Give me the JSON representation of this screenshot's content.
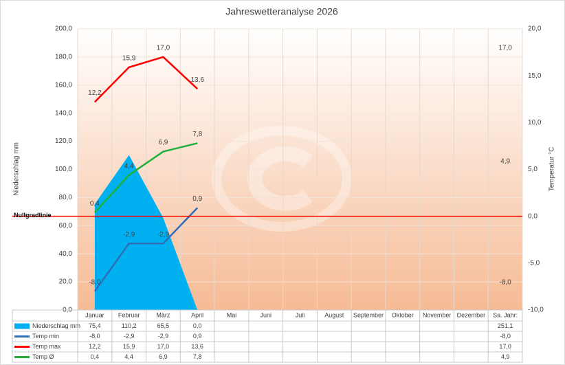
{
  "chart_data": {
    "type": "combo",
    "title": "Jahreswetteranalyse 2026",
    "ylabel": "Niederschlag mm",
    "y2label": "Temperatur °C",
    "categories": [
      "Januar",
      "Februar",
      "März",
      "April",
      "Mai",
      "Juni",
      "Juli",
      "August",
      "September",
      "Oktober",
      "November",
      "Dezember",
      "Sa. Jahr:"
    ],
    "ylim": [
      0,
      200
    ],
    "yticks": [
      {
        "value": 0,
        "label": "0,0"
      },
      {
        "value": 20,
        "label": "20,0"
      },
      {
        "value": 40,
        "label": "40,0"
      },
      {
        "value": 60,
        "label": "60,0"
      },
      {
        "value": 80,
        "label": "80,0"
      },
      {
        "value": 100,
        "label": "100,0"
      },
      {
        "value": 120,
        "label": "120,0"
      },
      {
        "value": 140,
        "label": "140,0"
      },
      {
        "value": 160,
        "label": "160,0"
      },
      {
        "value": 180,
        "label": "180,0"
      },
      {
        "value": 200,
        "label": "200,0"
      }
    ],
    "y2lim": [
      -10,
      20
    ],
    "y2ticks": [
      {
        "value": -10,
        "label": "-10,0"
      },
      {
        "value": -5,
        "label": "-5,0"
      },
      {
        "value": 0,
        "label": "0,0"
      },
      {
        "value": 5,
        "label": "5,0"
      },
      {
        "value": 10,
        "label": "10,0"
      },
      {
        "value": 15,
        "label": "15,0"
      },
      {
        "value": 20,
        "label": "20,0"
      }
    ],
    "grid": true,
    "zero_line": {
      "label": "Nullgradlinie",
      "value": 0,
      "axis": "y2",
      "color": "#ff0000"
    },
    "series": [
      {
        "name": "Niederschlag mm",
        "type": "area",
        "color": "#00b0f0",
        "values": [
          75.4,
          110.2,
          65.5,
          0.0,
          null,
          null,
          null,
          null,
          null,
          null,
          null,
          null,
          251.1
        ],
        "value_labels": [
          "75,4",
          "110,2",
          "65,5",
          "0,0",
          null,
          null,
          null,
          null,
          null,
          null,
          null,
          null,
          "251,1"
        ]
      },
      {
        "name": "Temp min",
        "type": "line",
        "axis": "y2",
        "color": "#2e6db8",
        "values": [
          -8.0,
          -2.9,
          -2.9,
          0.9,
          null,
          null,
          null,
          null,
          null,
          null,
          null,
          null,
          -8.0
        ],
        "value_labels": [
          "-8,0",
          "-2,9",
          "-2,9",
          "0,9",
          null,
          null,
          null,
          null,
          null,
          null,
          null,
          null,
          "-8,0"
        ]
      },
      {
        "name": "Temp max",
        "type": "line",
        "axis": "y2",
        "color": "#ff0000",
        "values": [
          12.2,
          15.9,
          17.0,
          13.6,
          null,
          null,
          null,
          null,
          null,
          null,
          null,
          null,
          17.0
        ],
        "value_labels": [
          "12,2",
          "15,9",
          "17,0",
          "13,6",
          null,
          null,
          null,
          null,
          null,
          null,
          null,
          null,
          "17,0"
        ]
      },
      {
        "name": "Temp Ø",
        "type": "line",
        "axis": "y2",
        "color": "#1fb03a",
        "values": [
          0.4,
          4.4,
          6.9,
          7.8,
          null,
          null,
          null,
          null,
          null,
          null,
          null,
          null,
          4.9
        ],
        "value_labels": [
          "0,4",
          "4,4",
          "6,9",
          "7,8",
          null,
          null,
          null,
          null,
          null,
          null,
          null,
          null,
          "4,9"
        ]
      }
    ]
  }
}
